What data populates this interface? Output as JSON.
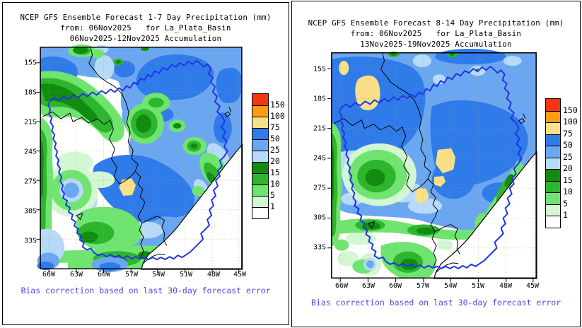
{
  "shared": {
    "lat_labels": [
      "15S",
      "18S",
      "21S",
      "24S",
      "27S",
      "30S",
      "33S"
    ],
    "lon_labels": [
      "66W",
      "63W",
      "60W",
      "57W",
      "54W",
      "51W",
      "48W",
      "45W"
    ],
    "colorbar": {
      "labels": [
        "150",
        "100",
        "75",
        "50",
        "25",
        "20",
        "15",
        "10",
        "5",
        "1"
      ],
      "colors": [
        "#F23612",
        "#FA9D16",
        "#F8E089",
        "#2F7BE9",
        "#6BA7F1",
        "#B6DAF7",
        "#118C11",
        "#2EB52E",
        "#70E470",
        "#D3F6D3",
        "#FFFFFF"
      ],
      "units": "mm"
    },
    "footer": "Bias correction based on last 30-day forecast error",
    "footer_color": "#4A4AE8",
    "basin_outline_color": "#1F35E8",
    "region": "La_Plata_Basin"
  },
  "left_panel": {
    "title_line1": "NCEP GFS Ensemble Forecast 1-7 Day Precipitation (mm)",
    "title_line2": "from: 06Nov2025   for La_Plata_Basin",
    "title_line3": "06Nov2025-12Nov2025 Accumulation"
  },
  "right_panel": {
    "title_line1": "NCEP GFS Ensemble Forecast 8-14 Day Precipitation (mm)",
    "title_line2": "from: 06Nov2025   for La_Plata_Basin",
    "title_line3": "13Nov2025-19Nov2025 Accumulation"
  }
}
